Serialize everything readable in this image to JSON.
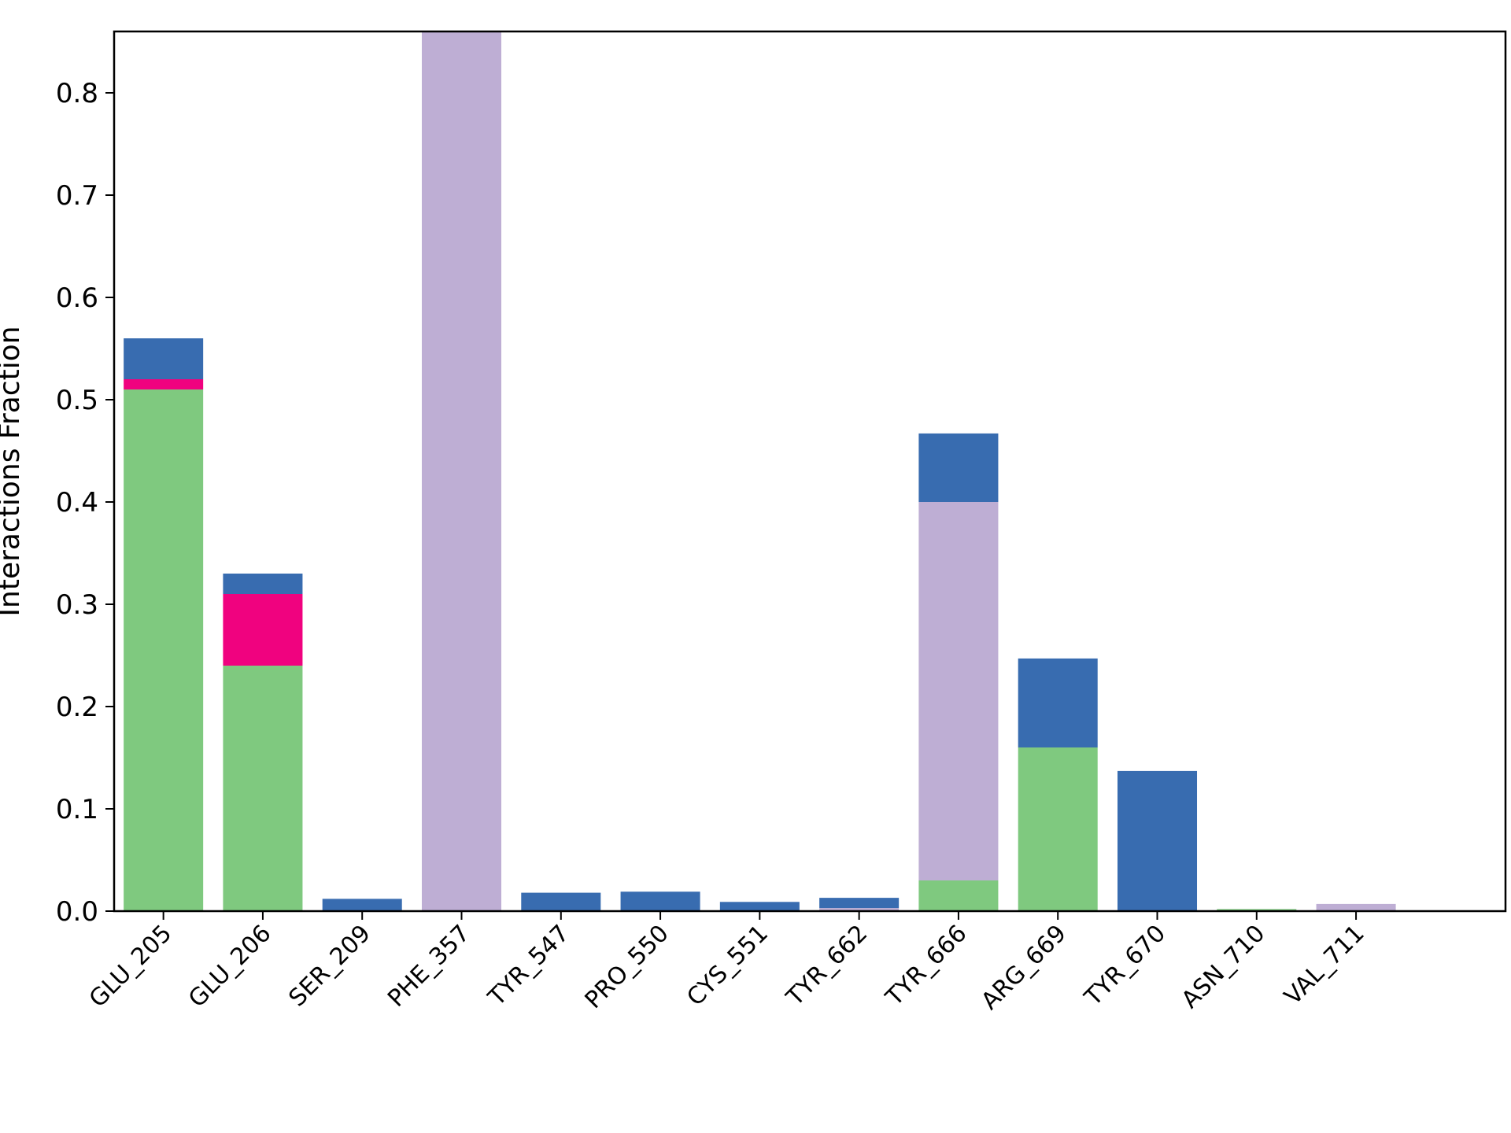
{
  "chart_data": {
    "type": "bar",
    "stacked": true,
    "title": "",
    "xlabel": "",
    "ylabel": "Interactions Fraction",
    "ylim": [
      0,
      0.86
    ],
    "yticks": [
      "0.0",
      "0.1",
      "0.2",
      "0.3",
      "0.4",
      "0.5",
      "0.6",
      "0.7",
      "0.8"
    ],
    "grid": false,
    "categories": [
      "GLU_205",
      "GLU_206",
      "SER_209",
      "PHE_357",
      "TYR_547",
      "PRO_550",
      "CYS_551",
      "TYR_662",
      "TYR_666",
      "ARG_669",
      "TYR_670",
      "ASN_710",
      "VAL_711"
    ],
    "series": [
      {
        "color": "#7fc97f",
        "values": [
          0.51,
          0.24,
          0,
          0,
          0,
          0,
          0,
          0,
          0.03,
          0.16,
          0,
          0.002,
          0
        ]
      },
      {
        "color": "#beaed4",
        "values": [
          0,
          0,
          0,
          0.86,
          0,
          0,
          0,
          0.003,
          0.37,
          0,
          0,
          0,
          0.007
        ]
      },
      {
        "color": "#f0027f",
        "values": [
          0.01,
          0.07,
          0,
          0,
          0,
          0,
          0,
          0,
          0,
          0,
          0,
          0,
          0
        ]
      },
      {
        "color": "#386cb0",
        "values": [
          0.04,
          0.02,
          0.012,
          0,
          0.018,
          0.019,
          0.009,
          0.01,
          0.067,
          0.087,
          0.137,
          0,
          0
        ]
      }
    ]
  }
}
